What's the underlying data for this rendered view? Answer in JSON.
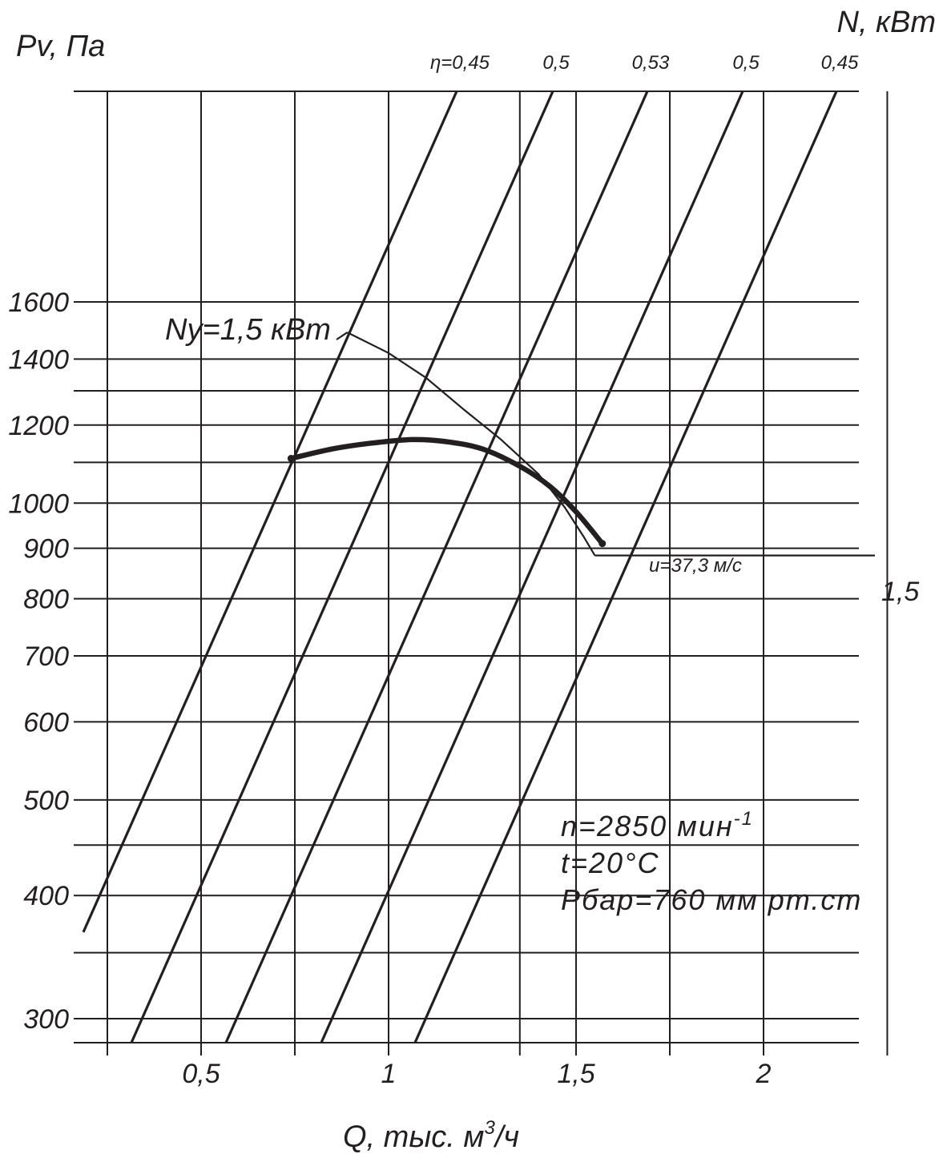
{
  "chart_data": {
    "type": "line",
    "y_axis_title": "Pv, Па",
    "x_axis_title": "Q, тыс. м",
    "x_axis_title_sup": "3",
    "x_axis_title_tail": "/ч",
    "right_axis_title": "N, кВт",
    "x_ticks": [
      {
        "value": 0.5,
        "label": "0,5"
      },
      {
        "value": 1,
        "label": "1"
      },
      {
        "value": 1.5,
        "label": "1,5"
      },
      {
        "value": 2,
        "label": "2"
      }
    ],
    "y_ticks": [
      {
        "value": 1600,
        "label": "1600"
      },
      {
        "value": 1400,
        "label": "1400"
      },
      {
        "value": 1200,
        "label": "1200"
      },
      {
        "value": 1000,
        "label": "1000"
      },
      {
        "value": 900,
        "label": "900"
      },
      {
        "value": 800,
        "label": "800"
      },
      {
        "value": 700,
        "label": "700"
      },
      {
        "value": 600,
        "label": "600"
      },
      {
        "value": 500,
        "label": "500"
      },
      {
        "value": 400,
        "label": "400"
      },
      {
        "value": 300,
        "label": "300"
      }
    ],
    "efficiency_lines": [
      {
        "label": "η=0,45",
        "value": 0.45
      },
      {
        "label": "0,5",
        "value": 0.5
      },
      {
        "label": "0,53",
        "value": 0.53
      },
      {
        "label": "0,5",
        "value": 0.5
      },
      {
        "label": "0,45",
        "value": 0.45
      }
    ],
    "pressure_curve": {
      "name": "Pv",
      "points": [
        {
          "q": 0.74,
          "p": 1110
        },
        {
          "q": 0.85,
          "p": 1135
        },
        {
          "q": 0.95,
          "p": 1150
        },
        {
          "q": 1.06,
          "p": 1160
        },
        {
          "q": 1.15,
          "p": 1155
        },
        {
          "q": 1.25,
          "p": 1135
        },
        {
          "q": 1.35,
          "p": 1090
        },
        {
          "q": 1.43,
          "p": 1040
        },
        {
          "q": 1.5,
          "p": 980
        },
        {
          "q": 1.57,
          "p": 910
        }
      ]
    },
    "power_curve": {
      "label": "Ny=1,5 кВт",
      "points": [
        {
          "q": 0.89,
          "p": 1490
        },
        {
          "q": 1.0,
          "p": 1420
        },
        {
          "q": 1.1,
          "p": 1340
        },
        {
          "q": 1.2,
          "p": 1245
        },
        {
          "q": 1.3,
          "p": 1160
        },
        {
          "q": 1.4,
          "p": 1070
        },
        {
          "q": 1.47,
          "p": 990
        },
        {
          "q": 1.52,
          "p": 925
        },
        {
          "q": 1.55,
          "p": 885
        }
      ]
    },
    "power_leader_value_label": "1,5",
    "endpoint_label": "u=37,3 м/с",
    "notes": [
      {
        "text": "n=2850 мин",
        "sup": "-1"
      },
      {
        "text": "t=20°C",
        "sup": ""
      },
      {
        "text": "Pбар=760 мм рт.ст",
        "sup": ""
      }
    ],
    "grid": true
  }
}
